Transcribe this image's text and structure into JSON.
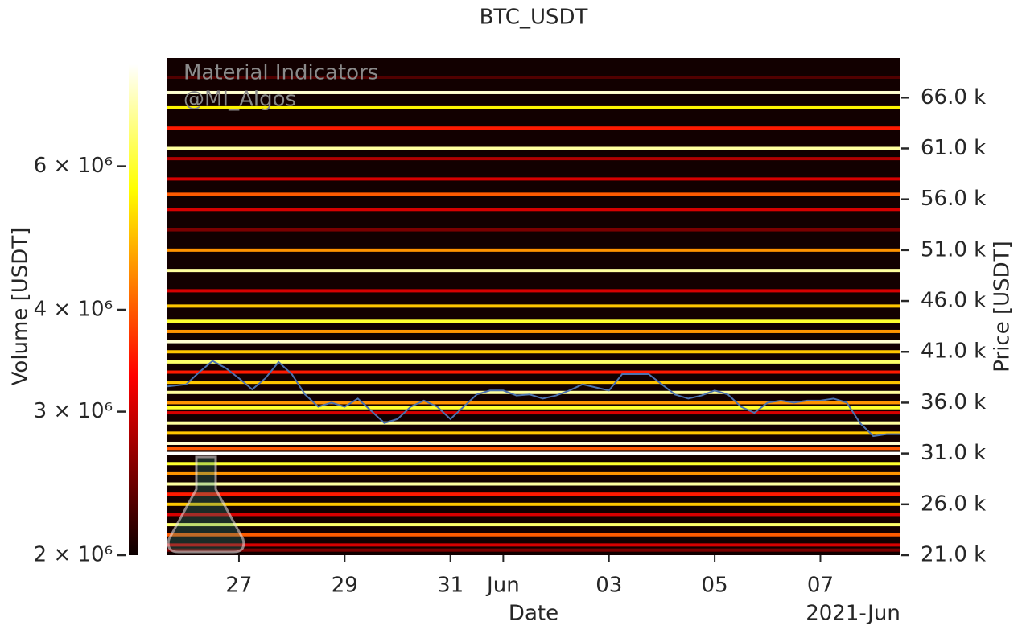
{
  "chart_data": {
    "type": "heatmap",
    "title": "BTC_USDT",
    "xlabel": "Date",
    "x_offset_label": "2021-Jun",
    "xlim": [
      "2021-05-25T15:30",
      "2021-06-08T12:00"
    ],
    "xticks": [
      {
        "value": "2021-05-27T00:00",
        "label": "27"
      },
      {
        "value": "2021-05-29T00:00",
        "label": "29"
      },
      {
        "value": "2021-05-31T00:00",
        "label": "31"
      },
      {
        "value": "2021-06-01T00:00",
        "label": "Jun"
      },
      {
        "value": "2021-06-03T00:00",
        "label": "03"
      },
      {
        "value": "2021-06-05T00:00",
        "label": "05"
      },
      {
        "value": "2021-06-07T00:00",
        "label": "07"
      }
    ],
    "y2label": "Price [USDT]",
    "y2lim": [
      21000,
      69900
    ],
    "y2ticks": [
      {
        "value": 21000,
        "label": "21.0 k"
      },
      {
        "value": 26000,
        "label": "26.0 k"
      },
      {
        "value": 31000,
        "label": "31.0 k"
      },
      {
        "value": 36000,
        "label": "36.0 k"
      },
      {
        "value": 41000,
        "label": "41.0 k"
      },
      {
        "value": 46000,
        "label": "46.0 k"
      },
      {
        "value": 51000,
        "label": "51.0 k"
      },
      {
        "value": 56000,
        "label": "56.0 k"
      },
      {
        "value": 61000,
        "label": "61.0 k"
      },
      {
        "value": 66000,
        "label": "66.0 k"
      }
    ],
    "colorbar": {
      "label": "Volume [USDT]",
      "scale": "log",
      "cmap": "hot",
      "lim": [
        2000000,
        8000000
      ],
      "ticks": [
        {
          "value": 2000000,
          "label": "2 × 10⁶"
        },
        {
          "value": 3000000,
          "label": "3 × 10⁶"
        },
        {
          "value": 4000000,
          "label": "4 × 10⁶"
        },
        {
          "value": 6000000,
          "label": "6 × 10⁶"
        }
      ]
    },
    "background": "#120000",
    "levels": {
      "prices": [
        68000,
        66500,
        65000,
        63000,
        61000,
        60000,
        58000,
        56500,
        55000,
        53000,
        51000,
        49000,
        47000,
        45500,
        44000,
        43000,
        42000,
        41000,
        40000,
        39000,
        38000,
        37000,
        36000,
        35500,
        35000,
        34000,
        33000,
        32000,
        31500,
        31000,
        30000,
        29000,
        28000,
        27000,
        26000,
        25000,
        24000,
        23000,
        22000,
        21500
      ],
      "volumes": [
        2300000,
        7500000,
        5500000,
        3500000,
        7000000,
        2800000,
        3000000,
        4000000,
        3000000,
        2500000,
        4500000,
        7000000,
        3000000,
        5000000,
        6000000,
        4500000,
        7500000,
        5000000,
        6500000,
        3500000,
        5000000,
        7000000,
        4500000,
        6000000,
        3000000,
        7000000,
        5000000,
        7500000,
        4000000,
        8000000,
        6000000,
        4500000,
        7000000,
        3500000,
        5000000,
        3000000,
        6500000,
        4000000,
        3000000,
        2500000
      ]
    },
    "price_line": {
      "color": "#4c72b0",
      "x": [
        "2021-05-25T15:30",
        "2021-05-26T00:00",
        "2021-05-26T06:00",
        "2021-05-26T12:00",
        "2021-05-26T18:00",
        "2021-05-27T00:00",
        "2021-05-27T06:00",
        "2021-05-27T12:00",
        "2021-05-27T18:00",
        "2021-05-28T00:00",
        "2021-05-28T06:00",
        "2021-05-28T12:00",
        "2021-05-28T18:00",
        "2021-05-29T00:00",
        "2021-05-29T06:00",
        "2021-05-29T12:00",
        "2021-05-29T18:00",
        "2021-05-30T00:00",
        "2021-05-30T06:00",
        "2021-05-30T12:00",
        "2021-05-30T18:00",
        "2021-05-31T00:00",
        "2021-05-31T06:00",
        "2021-05-31T12:00",
        "2021-05-31T18:00",
        "2021-06-01T00:00",
        "2021-06-01T06:00",
        "2021-06-01T12:00",
        "2021-06-01T18:00",
        "2021-06-02T00:00",
        "2021-06-02T06:00",
        "2021-06-02T12:00",
        "2021-06-02T18:00",
        "2021-06-03T00:00",
        "2021-06-03T06:00",
        "2021-06-03T12:00",
        "2021-06-03T18:00",
        "2021-06-04T00:00",
        "2021-06-04T06:00",
        "2021-06-04T12:00",
        "2021-06-04T18:00",
        "2021-06-05T00:00",
        "2021-06-05T06:00",
        "2021-06-05T12:00",
        "2021-06-05T18:00",
        "2021-06-06T00:00",
        "2021-06-06T06:00",
        "2021-06-06T12:00",
        "2021-06-06T18:00",
        "2021-06-07T00:00",
        "2021-06-07T06:00",
        "2021-06-07T12:00",
        "2021-06-07T18:00",
        "2021-06-08T00:00",
        "2021-06-08T06:00",
        "2021-06-08T12:00"
      ],
      "values": [
        37600,
        37800,
        39000,
        40100,
        39400,
        38400,
        37300,
        38400,
        40000,
        38800,
        36800,
        35600,
        36000,
        35600,
        36400,
        35200,
        34000,
        34400,
        35600,
        36200,
        35600,
        34400,
        35600,
        36800,
        37200,
        37200,
        36700,
        36800,
        36400,
        36700,
        37200,
        37800,
        37500,
        37200,
        38800,
        38800,
        38800,
        37800,
        36800,
        36400,
        36700,
        37200,
        36800,
        35600,
        35000,
        36000,
        36200,
        36000,
        36200,
        36200,
        36400,
        36000,
        34000,
        32700,
        32900,
        32900
      ]
    },
    "annotations": [
      "Material Indicators",
      "@MI_Algos"
    ]
  }
}
